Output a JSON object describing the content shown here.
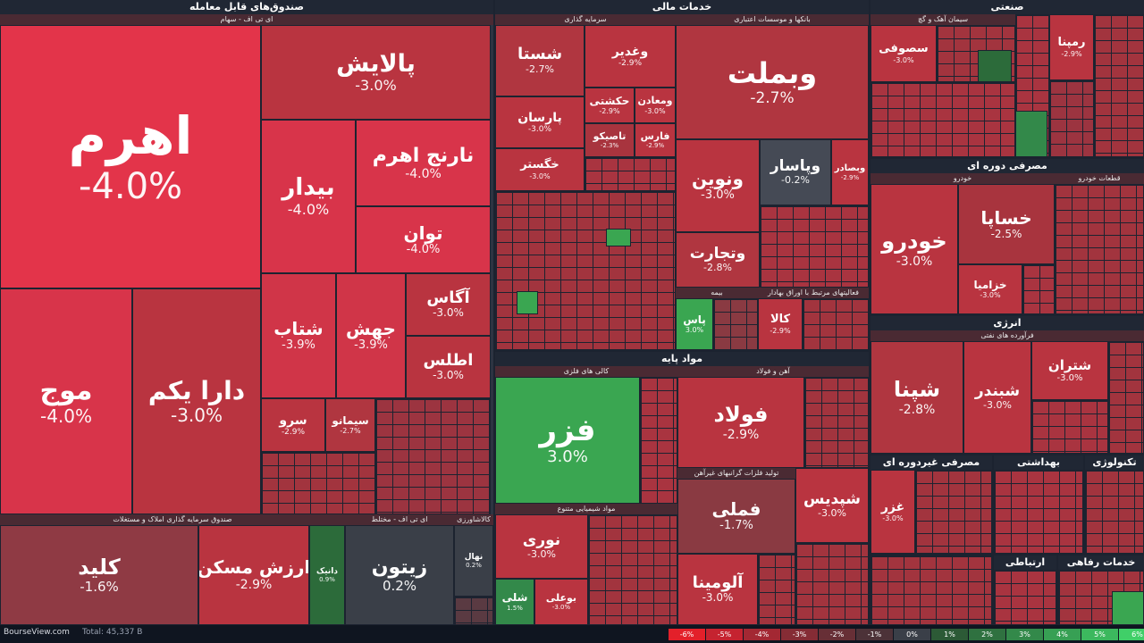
{
  "colors": {
    "down4": "#e3344a",
    "down3": "#c1313f",
    "down28": "#b83441",
    "down2": "#a8343e",
    "down1": "#8a3a42",
    "flat": "#3a3f48",
    "up1": "#2c6b3a",
    "up2": "#33894a",
    "up3": "#3aa651"
  },
  "sections": {
    "funds": "صندوق‌های قابل معامله",
    "fin": "خدمات مالی",
    "ind": "صنعتی",
    "base": "مواد پایه",
    "durable": "مصرفی دوره ای",
    "energy": "انرژی",
    "nondur": "مصرفی غیردوره ای",
    "health": "بهداشتی",
    "tech": "تکنولوژی",
    "comm": "ارتباطی",
    "welfare": "خدمات رفاهی",
    "realestate": "صندوق سرمایه گذاری املاک و مستغلات",
    "etfmixed": "ای تی اف - مختلط",
    "commod": "کالاشاورزی"
  },
  "subs": {
    "etfstock": "ای تی اف - سهام",
    "invest": "سرمایه گذاری",
    "banks": "بانکها و موسسات اعتباری",
    "insurance": "بیمه",
    "related": "فعالیتهای مرتبط با اوراق بهادار",
    "metal": "کالی های فلزی",
    "iron": "آهن و فولاد",
    "chem": "مواد شیمیایی متنوع",
    "nonferrous": "تولید فلزات گرانبهای غیرآهن",
    "cement": "سیمان آهک و گچ",
    "auto": "خودرو",
    "autoparts": "قطعات خودرو",
    "oil": "فرآورده های نفتی"
  },
  "tiles": [
    {
      "id": "ahrom",
      "name": "اهرم",
      "pct": "-4.0%"
    },
    {
      "id": "pallaysh",
      "name": "پالایش",
      "pct": "-3.0%"
    },
    {
      "id": "narenj",
      "name": "نارنج اهرم",
      "pct": "-4.0%"
    },
    {
      "id": "bidar",
      "name": "بیدار",
      "pct": "-4.0%"
    },
    {
      "id": "tavan",
      "name": "توان",
      "pct": "-4.0%"
    },
    {
      "id": "mowj",
      "name": "موج",
      "pct": "-4.0%"
    },
    {
      "id": "dara",
      "name": "دارا یکم",
      "pct": "-3.0%"
    },
    {
      "id": "shetab",
      "name": "شتاب",
      "pct": "-3.9%"
    },
    {
      "id": "jahesh",
      "name": "جهش",
      "pct": "-3.9%"
    },
    {
      "id": "agas",
      "name": "آگاس",
      "pct": "-3.0%"
    },
    {
      "id": "atlas",
      "name": "اطلس",
      "pct": "-3.0%"
    },
    {
      "id": "sarv",
      "name": "سرو",
      "pct": "-2.9%"
    },
    {
      "id": "simanu",
      "name": "سیمانو",
      "pct": "-2.7%"
    },
    {
      "id": "klid",
      "name": "کلید",
      "pct": "-1.6%"
    },
    {
      "id": "arzesh",
      "name": "ارزش مسکن",
      "pct": "-2.9%"
    },
    {
      "id": "danik",
      "name": "دانیک",
      "pct": "0.9%"
    },
    {
      "id": "zeytun",
      "name": "زیتون",
      "pct": "0.2%"
    },
    {
      "id": "nahal",
      "name": "نهال",
      "pct": "0.2%"
    },
    {
      "id": "shasta",
      "name": "شستا",
      "pct": "-2.7%"
    },
    {
      "id": "vghadir",
      "name": "وغدیر",
      "pct": "-2.9%"
    },
    {
      "id": "parsan",
      "name": "پارسان",
      "pct": "-3.0%"
    },
    {
      "id": "hekmati",
      "name": "حکشتی",
      "pct": "-2.9%"
    },
    {
      "id": "vmaaden",
      "name": "ومعادن",
      "pct": "-3.0%"
    },
    {
      "id": "khgostar",
      "name": "خگستر",
      "pct": "-3.0%"
    },
    {
      "id": "tapiko",
      "name": "تاصیکو",
      "pct": "-2.3%"
    },
    {
      "id": "fars",
      "name": "فارس",
      "pct": "-2.9%"
    },
    {
      "id": "vbmellat",
      "name": "وبملت",
      "pct": "-2.7%"
    },
    {
      "id": "vnovin",
      "name": "ونوین",
      "pct": "-3.0%"
    },
    {
      "id": "vpasar",
      "name": "وپاسار",
      "pct": "-0.2%"
    },
    {
      "id": "vtejarat",
      "name": "وتجارت",
      "pct": "-2.8%"
    },
    {
      "id": "vbsader",
      "name": "وبصادر",
      "pct": "-2.9%"
    },
    {
      "id": "pas",
      "name": "پاس",
      "pct": "3.0%"
    },
    {
      "id": "kala",
      "name": "کالا",
      "pct": "-2.9%"
    },
    {
      "id": "fazar",
      "name": "فزر",
      "pct": "3.0%"
    },
    {
      "id": "foolad",
      "name": "فولاد",
      "pct": "-2.9%"
    },
    {
      "id": "nuri",
      "name": "نوری",
      "pct": "-3.0%"
    },
    {
      "id": "shapdis",
      "name": "شپدیس",
      "pct": "-3.0%"
    },
    {
      "id": "fameli",
      "name": "فملی",
      "pct": "-1.7%"
    },
    {
      "id": "alumina",
      "name": "آلومینا",
      "pct": "-3.0%"
    },
    {
      "id": "shaly",
      "name": "شلی",
      "pct": "1.5%"
    },
    {
      "id": "boali",
      "name": "بوعلی",
      "pct": "-3.0%"
    },
    {
      "id": "sofuni",
      "name": "سصوفی",
      "pct": "-3.0%"
    },
    {
      "id": "rampna",
      "name": "رمپنا",
      "pct": "-2.9%"
    },
    {
      "id": "khodro",
      "name": "خودرو",
      "pct": "-3.0%"
    },
    {
      "id": "khsapa",
      "name": "خساپا",
      "pct": "-2.5%"
    },
    {
      "id": "khzamia",
      "name": "خزامیا",
      "pct": "-3.0%"
    },
    {
      "id": "shepna",
      "name": "شپنا",
      "pct": "-2.8%"
    },
    {
      "id": "shbandar",
      "name": "شبندر",
      "pct": "-3.0%"
    },
    {
      "id": "shtran",
      "name": "شتران",
      "pct": "-3.0%"
    },
    {
      "id": "ghazar",
      "name": "غزر",
      "pct": "-3.0%"
    }
  ],
  "footer": {
    "brand": "BourseView.com",
    "total": "Total: 45,337 B",
    "legend": [
      "-6%",
      "-5%",
      "-4%",
      "-3%",
      "-2%",
      "-1%",
      "0%",
      "1%",
      "2%",
      "3%",
      "4%",
      "5%",
      "6%"
    ]
  }
}
